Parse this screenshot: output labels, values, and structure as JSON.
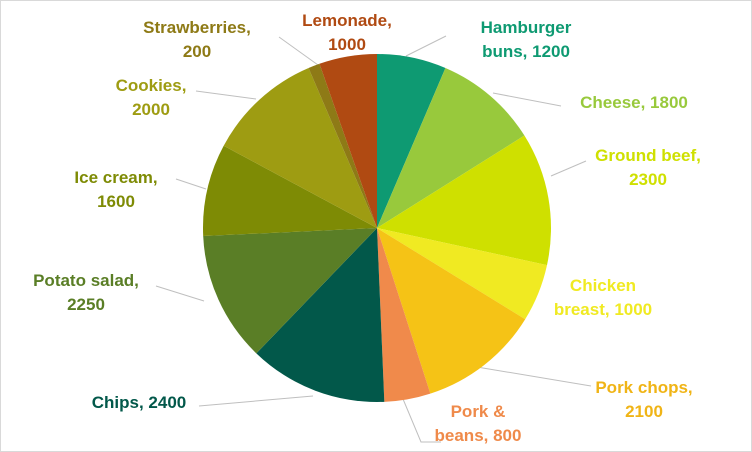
{
  "chart_data": {
    "type": "pie",
    "title": "",
    "start_angle_deg": 0,
    "direction": "clockwise",
    "legend": "none",
    "slices": [
      {
        "category": "Hamburger buns",
        "value": 1200,
        "label_lines": [
          "Hamburger",
          "buns, 1200"
        ],
        "color": "#0e9a72",
        "label_color": "#0e9a72"
      },
      {
        "category": "Cheese",
        "value": 1800,
        "label_lines": [
          "Cheese, 1800"
        ],
        "color": "#98c93c",
        "label_color": "#98c93c"
      },
      {
        "category": "Ground beef",
        "value": 2300,
        "label_lines": [
          "Ground beef,",
          "2300"
        ],
        "color": "#cfe000",
        "label_color": "#cfe000"
      },
      {
        "category": "Chicken breast",
        "value": 1000,
        "label_lines": [
          "Chicken",
          "breast, 1000"
        ],
        "color": "#f0ea22",
        "label_color": "#f0ea22"
      },
      {
        "category": "Pork chops",
        "value": 2100,
        "label_lines": [
          "Pork chops,",
          "2100"
        ],
        "color": "#f5c316",
        "label_color": "#f0b416"
      },
      {
        "category": "Pork & beans",
        "value": 800,
        "label_lines": [
          "Pork &",
          "beans, 800"
        ],
        "color": "#f08a4b",
        "label_color": "#ef8a4a"
      },
      {
        "category": "Chips",
        "value": 2400,
        "label_lines": [
          "Chips, 2400"
        ],
        "color": "#02584a",
        "label_color": "#02584a"
      },
      {
        "category": "Potato salad",
        "value": 2250,
        "label_lines": [
          "Potato salad,",
          "2250"
        ],
        "color": "#5a7e26",
        "label_color": "#5a7e26"
      },
      {
        "category": "Ice cream",
        "value": 1600,
        "label_lines": [
          "Ice cream,",
          "1600"
        ],
        "color": "#7e8b05",
        "label_color": "#7e8b05"
      },
      {
        "category": "Cookies",
        "value": 2000,
        "label_lines": [
          "Cookies,",
          "2000"
        ],
        "color": "#9e9c12",
        "label_color": "#9e9c12"
      },
      {
        "category": "Strawberries",
        "value": 200,
        "label_lines": [
          "Strawberries,",
          "200"
        ],
        "color": "#8e7a16",
        "label_color": "#8e7a16"
      },
      {
        "category": "Lemonade",
        "value": 1000,
        "label_lines": [
          "Lemonade,",
          "1000"
        ],
        "color": "#b04a12",
        "label_color": "#b04a12"
      }
    ]
  }
}
